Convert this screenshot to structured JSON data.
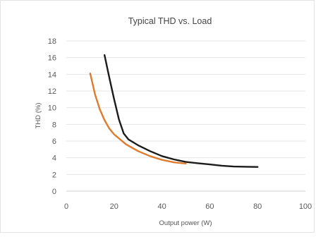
{
  "chart_data": {
    "type": "line",
    "title": "Typical THD vs. Load",
    "xlabel": "Output power (W)",
    "ylabel": "THD (%)",
    "xlim": [
      0,
      100
    ],
    "ylim": [
      0,
      18
    ],
    "xticks": [
      "0",
      "20",
      "40",
      "60",
      "80",
      "100"
    ],
    "yticks": [
      "0",
      "2",
      "4",
      "6",
      "8",
      "10",
      "12",
      "14",
      "16",
      "18"
    ],
    "grid": "horizontal",
    "legend": "none",
    "series": [
      {
        "color": "#1b1b1b",
        "x": [
          16,
          18,
          20,
          22,
          24,
          26,
          30,
          35,
          40,
          45,
          50,
          55,
          60,
          65,
          70,
          75,
          80
        ],
        "y": [
          16.3,
          13.6,
          11.0,
          8.6,
          6.9,
          6.2,
          5.5,
          4.8,
          4.2,
          3.8,
          3.5,
          3.35,
          3.2,
          3.05,
          2.95,
          2.92,
          2.9
        ]
      },
      {
        "color": "#e07b2e",
        "x": [
          10,
          12,
          14,
          16,
          18,
          20,
          25,
          30,
          35,
          40,
          45,
          50
        ],
        "y": [
          14.1,
          11.6,
          9.8,
          8.5,
          7.5,
          6.8,
          5.6,
          4.8,
          4.2,
          3.75,
          3.45,
          3.3
        ]
      }
    ]
  }
}
